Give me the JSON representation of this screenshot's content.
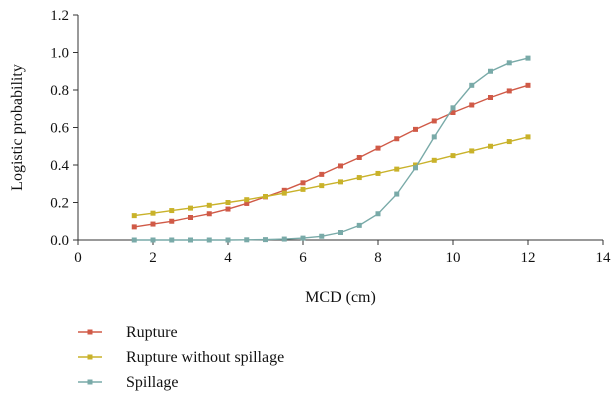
{
  "chart_data": {
    "type": "line",
    "title": "",
    "xlabel": "MCD (cm)",
    "ylabel": "Logistic probability",
    "xlim": [
      0,
      14
    ],
    "ylim": [
      0,
      1.2
    ],
    "x_ticks": [
      0,
      2,
      4,
      6,
      8,
      10,
      12,
      14
    ],
    "y_ticks": [
      "0.0",
      "0.2",
      "0.4",
      "0.6",
      "0.8",
      "1.0",
      "1.2"
    ],
    "grid": false,
    "legend_position": "bottom",
    "x": [
      1.5,
      2,
      2.5,
      3,
      3.5,
      4,
      4.5,
      5,
      5.5,
      6,
      6.5,
      7,
      7.5,
      8,
      8.5,
      9,
      9.5,
      10,
      10.5,
      11,
      11.5,
      12
    ],
    "series": [
      {
        "name": "Rupture",
        "color": "#d05a47",
        "values": [
          0.07,
          0.085,
          0.1,
          0.12,
          0.14,
          0.165,
          0.195,
          0.23,
          0.265,
          0.305,
          0.35,
          0.395,
          0.44,
          0.49,
          0.54,
          0.59,
          0.635,
          0.68,
          0.72,
          0.76,
          0.795,
          0.825
        ]
      },
      {
        "name": "Rupture without spillage",
        "color": "#c9b22a",
        "values": [
          0.13,
          0.143,
          0.157,
          0.17,
          0.185,
          0.2,
          0.215,
          0.232,
          0.25,
          0.27,
          0.29,
          0.31,
          0.333,
          0.355,
          0.378,
          0.4,
          0.425,
          0.45,
          0.475,
          0.5,
          0.525,
          0.55
        ]
      },
      {
        "name": "Spillage",
        "color": "#79aaa8",
        "values": [
          0.0,
          0.0,
          0.0,
          0.0,
          0.0,
          0.0,
          0.001,
          0.002,
          0.005,
          0.01,
          0.02,
          0.04,
          0.078,
          0.14,
          0.245,
          0.385,
          0.55,
          0.705,
          0.825,
          0.9,
          0.945,
          0.97
        ]
      }
    ]
  }
}
